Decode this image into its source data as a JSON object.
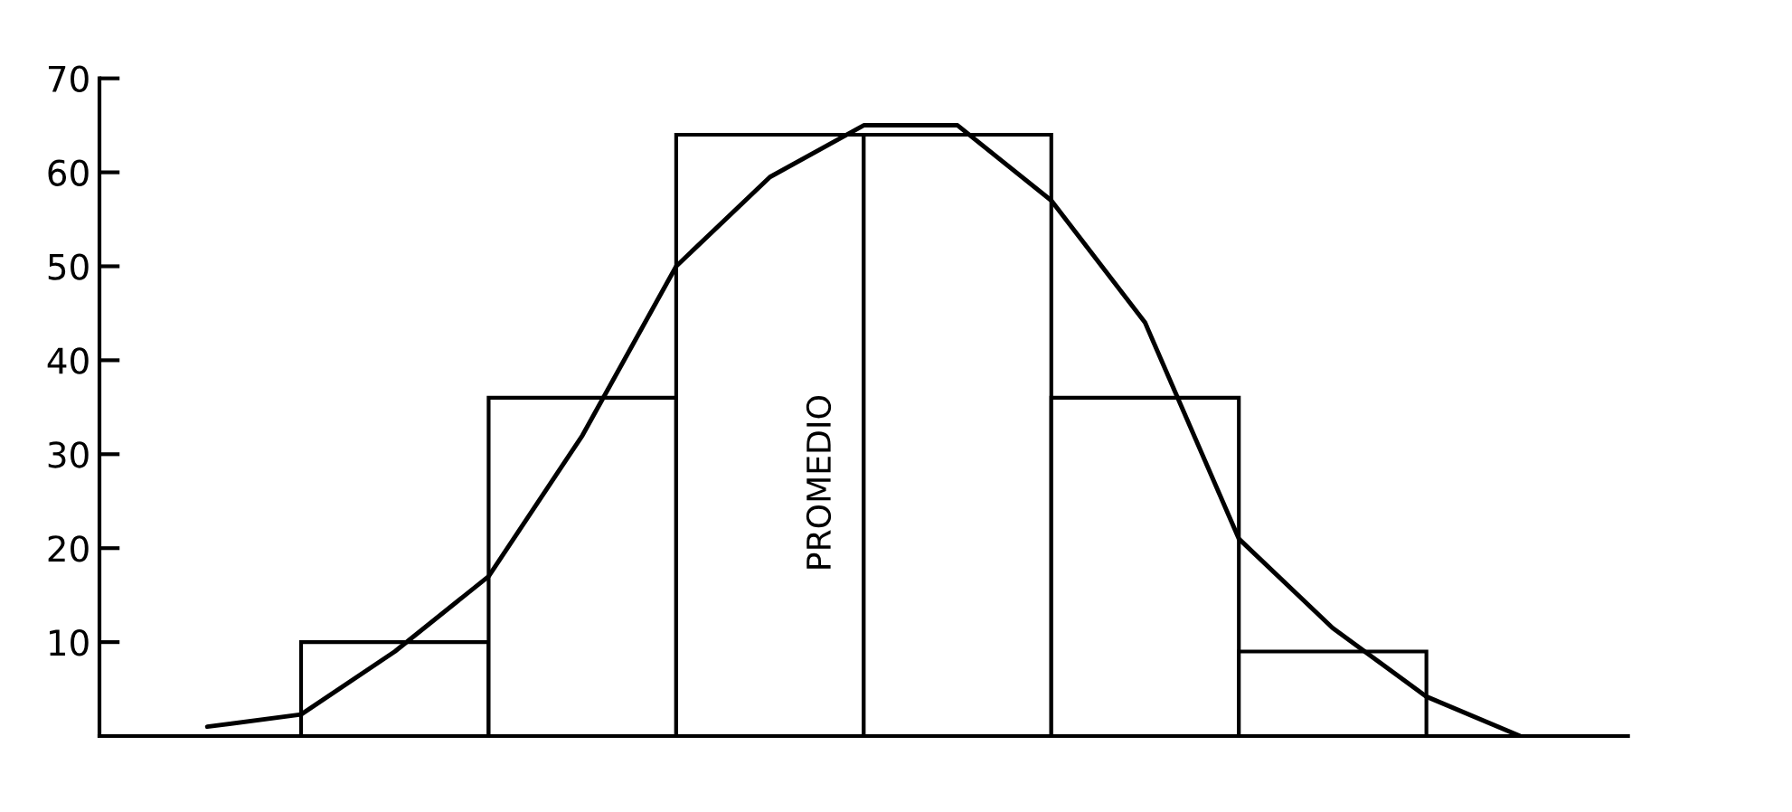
{
  "chart_data": {
    "type": "bar",
    "categories": [
      null,
      null,
      null,
      null,
      null,
      null,
      null,
      null,
      null,
      null,
      null,
      null,
      null,
      null,
      null
    ],
    "series": [
      {
        "color": "#ffffff",
        "values": [
          null,
          null,
          10,
          null,
          36,
          null,
          64,
          null,
          64,
          null,
          36,
          null,
          9,
          null,
          null
        ]
      },
      {
        "type": "line",
        "color": "#000000",
        "values": [
          1,
          2.3,
          9,
          17,
          32,
          50,
          59.5,
          65,
          65,
          57,
          44,
          21,
          11.5,
          4.2,
          0
        ]
      }
    ],
    "ylim": [
      0,
      70
    ],
    "yticks": [
      10,
      20,
      30,
      40,
      50,
      60,
      70
    ],
    "annotations": [
      "PROMEDIO"
    ],
    "grid": false,
    "legend": false,
    "marker": "none",
    "line_style": "solid"
  }
}
